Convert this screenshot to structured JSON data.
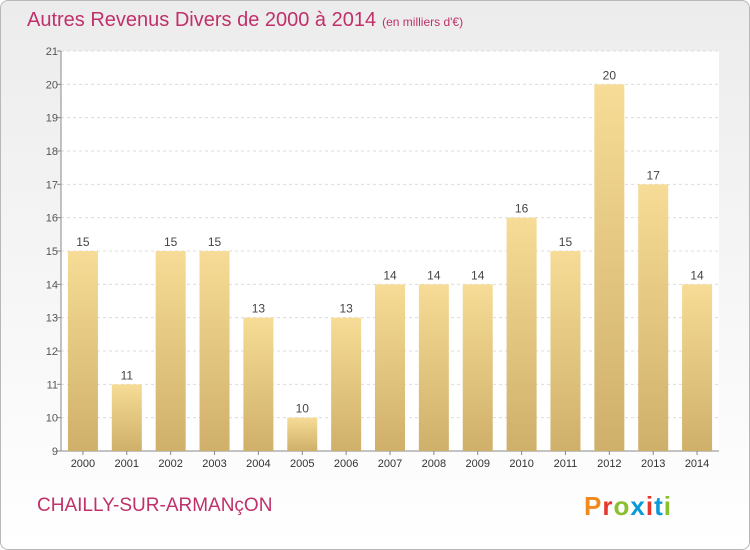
{
  "title": "Autres Revenus Divers de 2000 à 2014",
  "unit": "(en milliers d'€)",
  "place": "CHAILLY-SUR-ARMANçON",
  "logo": "Proxiti",
  "logo_colors": [
    "#f2891d",
    "#e8382d",
    "#8cbf2f",
    "#0a9ad8",
    "#e8382d",
    "#0a9ad8",
    "#8cbf2f"
  ],
  "colors": {
    "title": "#c0306a",
    "bar_light": "#f6dc96",
    "bar_dark": "#cfb06a",
    "axis": "#888888"
  },
  "chart_data": {
    "type": "bar",
    "categories": [
      "2000",
      "2001",
      "2002",
      "2003",
      "2004",
      "2005",
      "2006",
      "2007",
      "2008",
      "2009",
      "2010",
      "2011",
      "2012",
      "2013",
      "2014"
    ],
    "values": [
      15,
      11,
      15,
      15,
      13,
      10,
      13,
      14,
      14,
      14,
      16,
      15,
      20,
      17,
      14
    ],
    "ylim": [
      9,
      21
    ],
    "yticks": [
      9,
      10,
      11,
      12,
      13,
      14,
      15,
      16,
      17,
      18,
      19,
      20,
      21
    ],
    "grid": true
  }
}
